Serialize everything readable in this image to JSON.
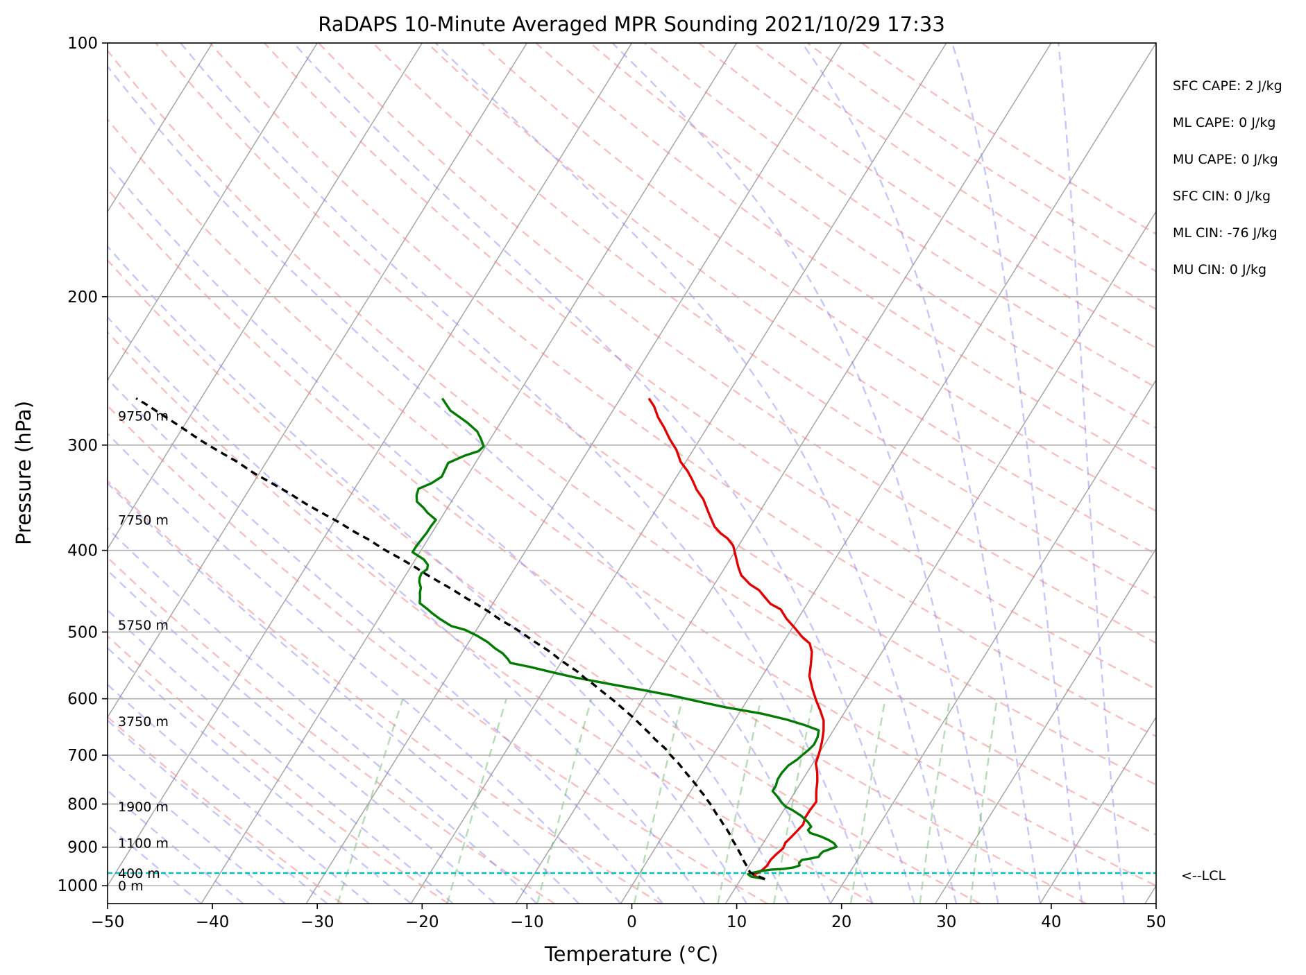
{
  "chart_data": {
    "type": "skew-t",
    "title": "RaDAPS 10-Minute Averaged MPR Sounding 2021/10/29 17:33",
    "xlabel": "Temperature (°C)",
    "ylabel": "Pressure (hPa)",
    "xlim": [
      -50,
      50
    ],
    "ylim": [
      1050,
      100
    ],
    "y_scale": "log",
    "skew_per_decade_degC": 50,
    "grid": true,
    "x_ticks": [
      {
        "value": -50,
        "label": "−50"
      },
      {
        "value": -40,
        "label": "−40"
      },
      {
        "value": -30,
        "label": "−30"
      },
      {
        "value": -20,
        "label": "−20"
      },
      {
        "value": -10,
        "label": "−10"
      },
      {
        "value": 0,
        "label": "0"
      },
      {
        "value": 10,
        "label": "10"
      },
      {
        "value": 20,
        "label": "20"
      },
      {
        "value": 30,
        "label": "30"
      },
      {
        "value": 40,
        "label": "40"
      },
      {
        "value": 50,
        "label": "50"
      }
    ],
    "y_ticks": [
      {
        "value": 100,
        "label": "100"
      },
      {
        "value": 200,
        "label": "200"
      },
      {
        "value": 300,
        "label": "300"
      },
      {
        "value": 400,
        "label": "400"
      },
      {
        "value": 500,
        "label": "500"
      },
      {
        "value": 600,
        "label": "600"
      },
      {
        "value": 700,
        "label": "700"
      },
      {
        "value": 800,
        "label": "800"
      },
      {
        "value": 900,
        "label": "900"
      },
      {
        "value": 1000,
        "label": "1000"
      }
    ],
    "height_labels": [
      {
        "p": 1000,
        "label": "0 m"
      },
      {
        "p": 966,
        "label": "400 m"
      },
      {
        "p": 890,
        "label": "1100 m"
      },
      {
        "p": 805,
        "label": "1900 m"
      },
      {
        "p": 638,
        "label": "3750 m"
      },
      {
        "p": 490,
        "label": "5750 m"
      },
      {
        "p": 368,
        "label": "7750 m"
      },
      {
        "p": 277,
        "label": "9750 m"
      }
    ],
    "lcl": {
      "p": 966,
      "label": "<--LCL",
      "color": "#00bfbf"
    },
    "indices": [
      {
        "label": "SFC CAPE: 2 J/kg"
      },
      {
        "label": "ML CAPE: 0 J/kg"
      },
      {
        "label": "MU CAPE: 0 J/kg"
      },
      {
        "label": "SFC CIN: 0 J/kg"
      },
      {
        "label": "ML CIN: -76 J/kg"
      },
      {
        "label": "MU CIN: 0 J/kg"
      }
    ],
    "series": [
      {
        "color": "#e00000",
        "kind": "temperature",
        "points": [
          [
            12.3,
            982
          ],
          [
            11.7,
            979
          ],
          [
            11.3,
            975
          ],
          [
            11.0,
            972
          ],
          [
            10.9,
            969
          ],
          [
            11.2,
            966
          ],
          [
            11.5,
            958
          ],
          [
            11.7,
            947
          ],
          [
            11.7,
            932
          ],
          [
            11.9,
            918
          ],
          [
            12.2,
            903
          ],
          [
            12.1,
            889
          ],
          [
            12.3,
            876
          ],
          [
            12.5,
            862
          ],
          [
            12.7,
            846
          ],
          [
            12.5,
            830
          ],
          [
            12.5,
            815
          ],
          [
            12.6,
            795
          ],
          [
            12.0,
            773
          ],
          [
            11.5,
            752
          ],
          [
            11.0,
            735
          ],
          [
            10.3,
            716
          ],
          [
            10.0,
            696
          ],
          [
            9.6,
            675
          ],
          [
            9.1,
            655
          ],
          [
            8.5,
            637
          ],
          [
            7.6,
            620
          ],
          [
            6.6,
            603
          ],
          [
            5.6,
            585
          ],
          [
            4.5,
            564
          ],
          [
            3.9,
            545
          ],
          [
            3.3,
            528
          ],
          [
            2.6,
            516
          ],
          [
            1.4,
            506
          ],
          [
            0.3,
            495
          ],
          [
            -1.1,
            482
          ],
          [
            -2.2,
            470
          ],
          [
            -3.5,
            463
          ],
          [
            -4.5,
            454
          ],
          [
            -5.4,
            446
          ],
          [
            -6.6,
            439
          ],
          [
            -8.0,
            428
          ],
          [
            -8.8,
            418
          ],
          [
            -9.6,
            407
          ],
          [
            -10.5,
            395
          ],
          [
            -11.5,
            387
          ],
          [
            -12.4,
            382
          ],
          [
            -13.4,
            375
          ],
          [
            -14.3,
            366
          ],
          [
            -15.0,
            359
          ],
          [
            -16.1,
            348
          ],
          [
            -17.3,
            339
          ],
          [
            -18.3,
            330
          ],
          [
            -19.3,
            322
          ],
          [
            -20.5,
            314
          ],
          [
            -21.6,
            304
          ],
          [
            -22.9,
            295
          ],
          [
            -24.1,
            286
          ],
          [
            -25.3,
            278
          ],
          [
            -26.3,
            270
          ],
          [
            -27.3,
            264
          ]
        ]
      },
      {
        "color": "#007a00",
        "kind": "dewpoint",
        "points": [
          [
            12.3,
            982
          ],
          [
            10.8,
            975
          ],
          [
            10.4,
            969
          ],
          [
            10.6,
            966
          ],
          [
            11.4,
            961
          ],
          [
            12.3,
            957
          ],
          [
            13.5,
            955
          ],
          [
            14.4,
            951
          ],
          [
            14.8,
            946
          ],
          [
            14.6,
            940
          ],
          [
            14.7,
            932
          ],
          [
            15.5,
            928
          ],
          [
            16.1,
            924
          ],
          [
            16.1,
            918
          ],
          [
            16.2,
            911
          ],
          [
            16.8,
            904
          ],
          [
            17.2,
            899
          ],
          [
            16.8,
            891
          ],
          [
            16.1,
            883
          ],
          [
            15.1,
            874
          ],
          [
            13.9,
            866
          ],
          [
            13.5,
            859
          ],
          [
            13.6,
            851
          ],
          [
            13.0,
            840
          ],
          [
            12.0,
            826
          ],
          [
            10.8,
            813
          ],
          [
            10.0,
            806
          ],
          [
            9.3,
            796
          ],
          [
            8.6,
            784
          ],
          [
            7.8,
            772
          ],
          [
            7.8,
            761
          ],
          [
            7.6,
            748
          ],
          [
            7.6,
            735
          ],
          [
            7.8,
            720
          ],
          [
            8.3,
            708
          ],
          [
            8.5,
            700
          ],
          [
            8.8,
            690
          ],
          [
            9.0,
            680
          ],
          [
            8.9,
            666
          ],
          [
            8.6,
            654
          ],
          [
            7.0,
            645
          ],
          [
            4.9,
            635
          ],
          [
            2.2,
            625
          ],
          [
            -1.7,
            614
          ],
          [
            -4.7,
            604
          ],
          [
            -7.4,
            595
          ],
          [
            -10.5,
            586
          ],
          [
            -14.2,
            576
          ],
          [
            -17.8,
            566
          ],
          [
            -20.3,
            558
          ],
          [
            -22.7,
            550
          ],
          [
            -24.8,
            544
          ],
          [
            -25.3,
            538
          ],
          [
            -26.1,
            530
          ],
          [
            -27.1,
            523
          ],
          [
            -28.2,
            514
          ],
          [
            -29.6,
            505
          ],
          [
            -31.1,
            497
          ],
          [
            -32.6,
            492
          ],
          [
            -33.4,
            487
          ],
          [
            -34.2,
            482
          ],
          [
            -35.2,
            475
          ],
          [
            -36.0,
            469
          ],
          [
            -37.0,
            462
          ],
          [
            -37.3,
            455
          ],
          [
            -37.6,
            449
          ],
          [
            -37.8,
            443
          ],
          [
            -38.3,
            436
          ],
          [
            -38.5,
            431
          ],
          [
            -38.6,
            426
          ],
          [
            -38.3,
            421
          ],
          [
            -38.5,
            416
          ],
          [
            -39.2,
            410
          ],
          [
            -40.7,
            402
          ],
          [
            -40.7,
            395
          ],
          [
            -40.6,
            388
          ],
          [
            -40.5,
            381
          ],
          [
            -40.5,
            375
          ],
          [
            -40.4,
            368
          ],
          [
            -41.6,
            361
          ],
          [
            -42.3,
            356
          ],
          [
            -43.3,
            350
          ],
          [
            -43.7,
            344
          ],
          [
            -43.9,
            338
          ],
          [
            -43.0,
            333
          ],
          [
            -42.4,
            327
          ],
          [
            -42.5,
            321
          ],
          [
            -42.6,
            315
          ],
          [
            -41.5,
            309
          ],
          [
            -40.4,
            305
          ],
          [
            -40.2,
            301
          ],
          [
            -40.9,
            295
          ],
          [
            -41.7,
            289
          ],
          [
            -43.2,
            282
          ],
          [
            -45.5,
            273
          ],
          [
            -47.0,
            264
          ]
        ]
      },
      {
        "color": "#000000",
        "kind": "parcel",
        "dashed": true,
        "points": [
          [
            12.3,
            982
          ],
          [
            10.6,
            966
          ],
          [
            10.2,
            958
          ],
          [
            9.9,
            950
          ],
          [
            9.5,
            941
          ],
          [
            9.1,
            932
          ],
          [
            8.7,
            922
          ],
          [
            8.3,
            913
          ],
          [
            7.9,
            904
          ],
          [
            7.5,
            895
          ],
          [
            7.0,
            885
          ],
          [
            6.6,
            876
          ],
          [
            6.2,
            867
          ],
          [
            5.7,
            857
          ],
          [
            5.2,
            848
          ],
          [
            4.7,
            838
          ],
          [
            4.2,
            829
          ],
          [
            3.7,
            820
          ],
          [
            3.2,
            810
          ],
          [
            2.7,
            801
          ],
          [
            2.1,
            791
          ],
          [
            1.6,
            782
          ],
          [
            1.0,
            773
          ],
          [
            0.4,
            763
          ],
          [
            -0.2,
            754
          ],
          [
            -0.8,
            745
          ],
          [
            -1.5,
            735
          ],
          [
            -2.1,
            726
          ],
          [
            -2.8,
            716
          ],
          [
            -3.5,
            707
          ],
          [
            -4.2,
            698
          ],
          [
            -4.9,
            688
          ],
          [
            -5.7,
            679
          ],
          [
            -6.5,
            670
          ],
          [
            -7.3,
            660
          ],
          [
            -8.1,
            651
          ],
          [
            -8.9,
            642
          ],
          [
            -9.8,
            632
          ],
          [
            -10.7,
            623
          ],
          [
            -11.6,
            614
          ],
          [
            -12.6,
            604
          ],
          [
            -13.6,
            595
          ],
          [
            -14.6,
            586
          ],
          [
            -15.7,
            576
          ],
          [
            -16.8,
            567
          ],
          [
            -17.9,
            557
          ],
          [
            -19.1,
            548
          ],
          [
            -20.3,
            539
          ],
          [
            -21.5,
            529
          ],
          [
            -22.8,
            520
          ],
          [
            -24.1,
            511
          ],
          [
            -25.5,
            501
          ],
          [
            -26.9,
            492
          ],
          [
            -28.4,
            483
          ],
          [
            -29.9,
            473
          ],
          [
            -31.4,
            464
          ],
          [
            -33.0,
            455
          ],
          [
            -34.7,
            445
          ],
          [
            -36.4,
            436
          ],
          [
            -38.1,
            427
          ],
          [
            -39.9,
            417
          ],
          [
            -41.7,
            408
          ],
          [
            -43.6,
            399
          ],
          [
            -45.5,
            389
          ],
          [
            -47.5,
            380
          ],
          [
            -49.6,
            370
          ],
          [
            -51.7,
            361
          ],
          [
            -53.8,
            352
          ],
          [
            -56.0,
            342
          ],
          [
            -58.2,
            333
          ],
          [
            -60.5,
            324
          ],
          [
            -62.8,
            314
          ],
          [
            -65.2,
            305
          ],
          [
            -67.6,
            296
          ],
          [
            -70.1,
            286
          ],
          [
            -72.5,
            277
          ],
          [
            -75.0,
            268
          ],
          [
            -76.2,
            264
          ]
        ]
      }
    ]
  }
}
